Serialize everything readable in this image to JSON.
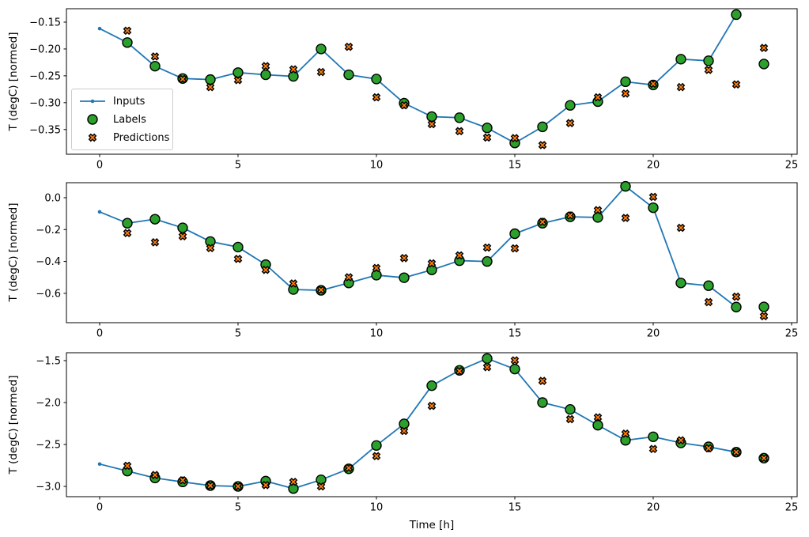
{
  "figure": {
    "xlabel": "Time [h]",
    "background_color": "#ffffff",
    "frame_color": "#000000",
    "legend": {
      "position": "upper-left inside first subplot",
      "items": [
        {
          "label": "Inputs",
          "icon": "line-dot-icon",
          "color": "#1f77b4"
        },
        {
          "label": "Labels",
          "icon": "circle-icon",
          "color": "#2ca02c"
        },
        {
          "label": "Predictions",
          "icon": "x-icon",
          "color": "#ff7f0e"
        }
      ]
    }
  },
  "chart_data": [
    {
      "type": "line+scatter",
      "title": "",
      "ylabel": "T (degC) [normed]",
      "xlim": [
        -1.2,
        25.2
      ],
      "ylim": [
        -0.396,
        -0.125
      ],
      "grid": false,
      "xtick_values": [
        0,
        5,
        10,
        15,
        20,
        25
      ],
      "xtick_labels": [
        "0",
        "5",
        "10",
        "15",
        "20",
        "25"
      ],
      "ytick_values": [
        -0.15,
        -0.2,
        -0.25,
        -0.3,
        -0.35
      ],
      "ytick_labels": [
        "−0.15",
        "−0.20",
        "−0.25",
        "−0.30",
        "−0.35"
      ],
      "series": [
        {
          "name": "Inputs",
          "type": "line",
          "marker": "dot",
          "color": "#1f77b4",
          "x": [
            0,
            1,
            2,
            3,
            4,
            5,
            6,
            7,
            8,
            9,
            10,
            11,
            12,
            13,
            14,
            15,
            16,
            17,
            18,
            19,
            20,
            21,
            22,
            23
          ],
          "y": [
            -0.162,
            -0.188,
            -0.232,
            -0.255,
            -0.257,
            -0.244,
            -0.248,
            -0.251,
            -0.2,
            -0.248,
            -0.256,
            -0.301,
            -0.326,
            -0.328,
            -0.347,
            -0.375,
            -0.345,
            -0.305,
            -0.298,
            -0.261,
            -0.267,
            -0.219,
            -0.222,
            -0.136
          ]
        },
        {
          "name": "Labels",
          "type": "scatter",
          "marker": "circle",
          "color": "#2ca02c",
          "edge_color": "#000000",
          "x": [
            1,
            2,
            3,
            4,
            5,
            6,
            7,
            8,
            9,
            10,
            11,
            12,
            13,
            14,
            15,
            16,
            17,
            18,
            19,
            20,
            21,
            22,
            23,
            24
          ],
          "y": [
            -0.188,
            -0.232,
            -0.255,
            -0.257,
            -0.244,
            -0.248,
            -0.251,
            -0.2,
            -0.248,
            -0.256,
            -0.301,
            -0.326,
            -0.328,
            -0.347,
            -0.375,
            -0.345,
            -0.305,
            -0.298,
            -0.261,
            -0.267,
            -0.219,
            -0.222,
            -0.136,
            -0.228
          ]
        },
        {
          "name": "Predictions",
          "type": "scatter",
          "marker": "X",
          "color": "#ff7f0e",
          "edge_color": "#000000",
          "x": [
            1,
            2,
            3,
            4,
            5,
            6,
            7,
            8,
            9,
            10,
            11,
            12,
            13,
            14,
            15,
            16,
            17,
            18,
            19,
            20,
            21,
            22,
            23,
            24
          ],
          "y": [
            -0.166,
            -0.214,
            -0.256,
            -0.271,
            -0.258,
            -0.232,
            -0.238,
            -0.243,
            -0.196,
            -0.29,
            -0.305,
            -0.34,
            -0.353,
            -0.365,
            -0.366,
            -0.379,
            -0.338,
            -0.29,
            -0.283,
            -0.265,
            -0.271,
            -0.239,
            -0.266,
            -0.198
          ]
        }
      ]
    },
    {
      "type": "line+scatter",
      "title": "",
      "ylabel": "T (degC) [normed]",
      "xlim": [
        -1.2,
        25.2
      ],
      "ylim": [
        -0.784,
        0.094
      ],
      "grid": false,
      "xtick_values": [
        0,
        5,
        10,
        15,
        20,
        25
      ],
      "xtick_labels": [
        "0",
        "5",
        "10",
        "15",
        "20",
        "25"
      ],
      "ytick_values": [
        0.0,
        -0.2,
        -0.4,
        -0.6
      ],
      "ytick_labels": [
        "0.0",
        "−0.2",
        "−0.4",
        "−0.6"
      ],
      "series": [
        {
          "name": "Inputs",
          "type": "line",
          "marker": "dot",
          "color": "#1f77b4",
          "x": [
            0,
            1,
            2,
            3,
            4,
            5,
            6,
            7,
            8,
            9,
            10,
            11,
            12,
            13,
            14,
            15,
            16,
            17,
            18,
            19,
            20,
            21,
            22,
            23
          ],
          "y": [
            -0.089,
            -0.16,
            -0.135,
            -0.189,
            -0.275,
            -0.31,
            -0.42,
            -0.576,
            -0.581,
            -0.535,
            -0.486,
            -0.502,
            -0.453,
            -0.395,
            -0.4,
            -0.226,
            -0.16,
            -0.12,
            -0.124,
            0.071,
            -0.063,
            -0.535,
            -0.552,
            -0.686
          ]
        },
        {
          "name": "Labels",
          "type": "scatter",
          "marker": "circle",
          "color": "#2ca02c",
          "edge_color": "#000000",
          "x": [
            1,
            2,
            3,
            4,
            5,
            6,
            7,
            8,
            9,
            10,
            11,
            12,
            13,
            14,
            15,
            16,
            17,
            18,
            19,
            20,
            21,
            22,
            23,
            24
          ],
          "y": [
            -0.16,
            -0.135,
            -0.189,
            -0.275,
            -0.31,
            -0.42,
            -0.576,
            -0.581,
            -0.535,
            -0.486,
            -0.502,
            -0.453,
            -0.395,
            -0.4,
            -0.226,
            -0.16,
            -0.12,
            -0.124,
            0.071,
            -0.063,
            -0.535,
            -0.552,
            -0.686,
            -0.685
          ]
        },
        {
          "name": "Predictions",
          "type": "scatter",
          "marker": "X",
          "color": "#ff7f0e",
          "edge_color": "#000000",
          "x": [
            1,
            2,
            3,
            4,
            5,
            6,
            7,
            8,
            9,
            10,
            11,
            12,
            13,
            14,
            15,
            16,
            17,
            18,
            19,
            20,
            21,
            22,
            23,
            24
          ],
          "y": [
            -0.222,
            -0.28,
            -0.242,
            -0.316,
            -0.384,
            -0.453,
            -0.538,
            -0.578,
            -0.499,
            -0.441,
            -0.379,
            -0.412,
            -0.362,
            -0.313,
            -0.318,
            -0.152,
            -0.112,
            -0.078,
            -0.127,
            0.005,
            -0.189,
            -0.655,
            -0.621,
            -0.743
          ]
        }
      ]
    },
    {
      "type": "line+scatter",
      "title": "",
      "ylabel": "T (degC) [normed]",
      "xlabel": "Time [h]",
      "xlim": [
        -1.2,
        25.2
      ],
      "ylim": [
        -3.122,
        -1.406
      ],
      "grid": false,
      "xtick_values": [
        0,
        5,
        10,
        15,
        20,
        25
      ],
      "xtick_labels": [
        "0",
        "5",
        "10",
        "15",
        "20",
        "25"
      ],
      "ytick_values": [
        -1.5,
        -2.0,
        -2.5,
        -3.0
      ],
      "ytick_labels": [
        "−1.5",
        "−2.0",
        "−2.5",
        "−3.0"
      ],
      "series": [
        {
          "name": "Inputs",
          "type": "line",
          "marker": "dot",
          "color": "#1f77b4",
          "x": [
            0,
            1,
            2,
            3,
            4,
            5,
            6,
            7,
            8,
            9,
            10,
            11,
            12,
            13,
            14,
            15,
            16,
            17,
            18,
            19,
            20,
            21,
            22,
            23
          ],
          "y": [
            -2.733,
            -2.817,
            -2.899,
            -2.946,
            -2.99,
            -3.0,
            -2.937,
            -3.025,
            -2.921,
            -2.79,
            -2.512,
            -2.254,
            -1.799,
            -1.616,
            -1.475,
            -1.601,
            -2.0,
            -2.082,
            -2.27,
            -2.45,
            -2.408,
            -2.481,
            -2.528,
            -2.591
          ]
        },
        {
          "name": "Labels",
          "type": "scatter",
          "marker": "circle",
          "color": "#2ca02c",
          "edge_color": "#000000",
          "x": [
            1,
            2,
            3,
            4,
            5,
            6,
            7,
            8,
            9,
            10,
            11,
            12,
            13,
            14,
            15,
            16,
            17,
            18,
            19,
            20,
            21,
            22,
            23,
            24
          ],
          "y": [
            -2.817,
            -2.899,
            -2.946,
            -2.99,
            -3.0,
            -2.937,
            -3.025,
            -2.921,
            -2.79,
            -2.512,
            -2.254,
            -1.799,
            -1.616,
            -1.475,
            -1.601,
            -2.0,
            -2.082,
            -2.27,
            -2.45,
            -2.408,
            -2.481,
            -2.528,
            -2.591,
            -2.663
          ]
        },
        {
          "name": "Predictions",
          "type": "scatter",
          "marker": "X",
          "color": "#ff7f0e",
          "edge_color": "#000000",
          "x": [
            1,
            2,
            3,
            4,
            5,
            6,
            7,
            8,
            9,
            10,
            11,
            12,
            13,
            14,
            15,
            16,
            17,
            18,
            19,
            20,
            21,
            22,
            23,
            24
          ],
          "y": [
            -2.754,
            -2.864,
            -2.927,
            -2.99,
            -2.999,
            -2.984,
            -2.946,
            -3.0,
            -2.78,
            -2.638,
            -2.339,
            -2.04,
            -1.625,
            -1.578,
            -1.497,
            -1.742,
            -2.198,
            -2.176,
            -2.371,
            -2.553,
            -2.45,
            -2.545,
            -2.591,
            -2.663
          ]
        }
      ]
    }
  ]
}
